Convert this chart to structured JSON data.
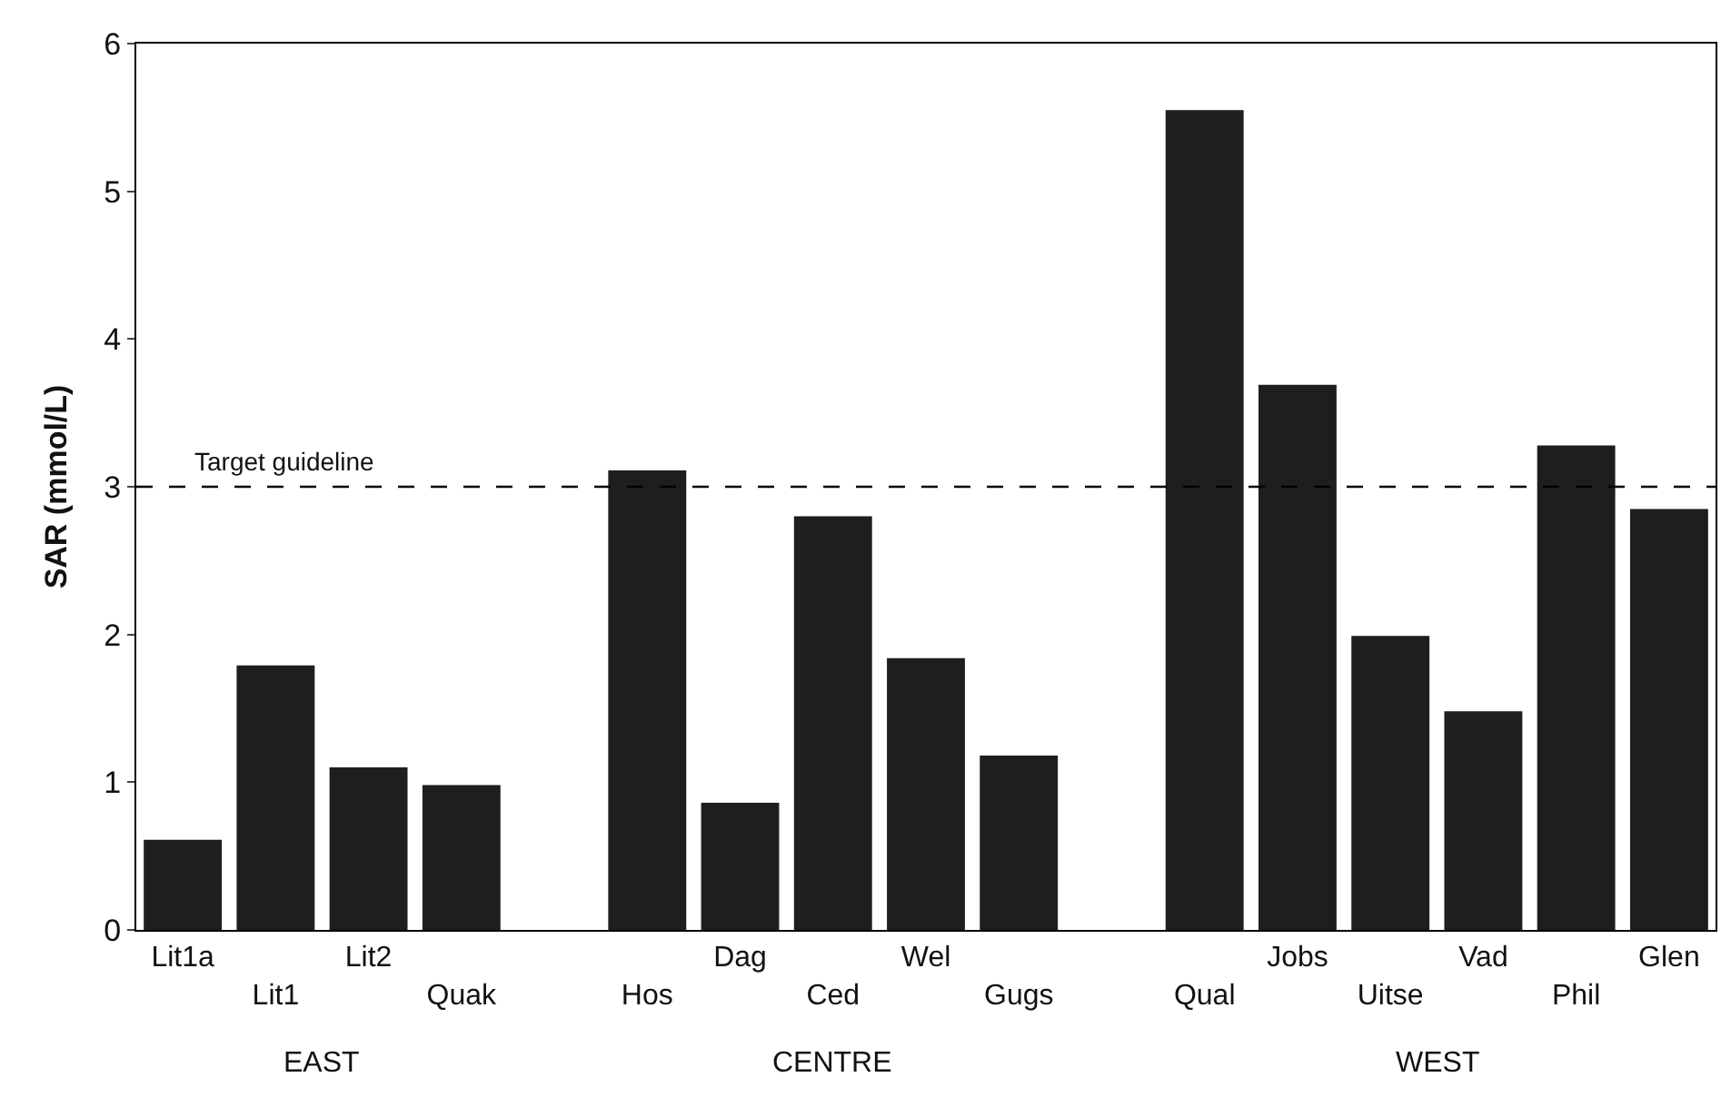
{
  "chart_data": {
    "type": "bar",
    "ylabel": "SAR (mmol/L)",
    "categories": [
      "Lit1a",
      "Lit1",
      "Lit2",
      "Quak",
      null,
      "Hos",
      "Dag",
      "Ced",
      "Wel",
      "Gugs",
      null,
      "Qual",
      "Jobs",
      "Uitse",
      "Vad",
      "Phil",
      "Glen"
    ],
    "values": [
      0.61,
      1.79,
      1.1,
      0.98,
      null,
      3.11,
      0.86,
      2.8,
      1.84,
      1.18,
      null,
      5.55,
      3.69,
      1.99,
      1.48,
      3.28,
      2.85
    ],
    "color": "#1e1e1e",
    "ylim": [
      0,
      6
    ],
    "yticks": [
      0,
      1,
      2,
      3,
      4,
      5,
      6
    ],
    "legend": false,
    "ref_lines": [
      {
        "axis": "y",
        "value": 3,
        "label": "Target guideline",
        "line_style": "dashed",
        "color": "#000000"
      }
    ],
    "annotations": [
      "EAST",
      "CENTRE",
      "WEST"
    ]
  }
}
